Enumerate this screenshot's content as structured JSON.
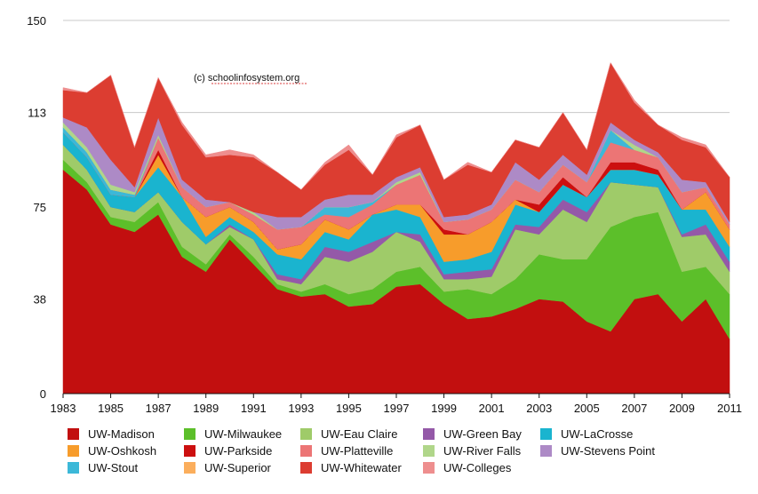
{
  "chart_data": {
    "type": "area",
    "stacked": true,
    "watermark": "(c) schoolinfosystem.org",
    "x": [
      1983,
      1984,
      1985,
      1986,
      1987,
      1988,
      1989,
      1990,
      1991,
      1992,
      1993,
      1994,
      1995,
      1996,
      1997,
      1998,
      1999,
      2000,
      2001,
      2002,
      2003,
      2004,
      2005,
      2006,
      2007,
      2008,
      2009,
      2010,
      2011
    ],
    "x_ticks": [
      "1983",
      "1985",
      "1987",
      "1989",
      "1991",
      "1993",
      "1995",
      "1997",
      "1999",
      "2001",
      "2003",
      "2005",
      "2007",
      "2009",
      "2011"
    ],
    "y_ticks": [
      "0",
      "38",
      "75",
      "113",
      "150"
    ],
    "ylim": [
      0,
      150
    ],
    "grid": true,
    "legend_position": "bottom",
    "series": [
      {
        "name": "UW-Madison",
        "color": "#c20f0f",
        "values": [
          90,
          82,
          68,
          65,
          72,
          55,
          49,
          62,
          52,
          42,
          39,
          40,
          35,
          36,
          43,
          44,
          36,
          30,
          31,
          34,
          38,
          37,
          29,
          25,
          38,
          40,
          29,
          38,
          22
        ]
      },
      {
        "name": "UW-Milwaukee",
        "color": "#5cbf2a",
        "values": [
          4,
          3,
          3,
          4,
          5,
          4,
          3,
          2,
          3,
          2,
          2,
          4,
          5,
          6,
          6,
          7,
          5,
          12,
          9,
          12,
          18,
          17,
          25,
          42,
          33,
          33,
          20,
          13,
          18
        ]
      },
      {
        "name": "UW-Eau Claire",
        "color": "#9fcb69",
        "values": [
          6,
          5,
          4,
          4,
          4,
          10,
          8,
          3,
          7,
          2,
          3,
          11,
          13,
          15,
          16,
          10,
          5,
          4,
          7,
          20,
          8,
          20,
          15,
          18,
          13,
          10,
          14,
          13,
          9
        ]
      },
      {
        "name": "UW-Green Bay",
        "color": "#9459a8",
        "values": [
          0,
          0,
          0,
          0,
          0,
          0,
          0,
          1,
          0,
          2,
          2,
          4,
          4,
          4,
          0,
          3,
          2,
          3,
          3,
          2,
          3,
          4,
          4,
          0,
          0,
          0,
          1,
          4,
          4
        ]
      },
      {
        "name": "UW-LaCrosse",
        "color": "#1ab4cf",
        "values": [
          5,
          5,
          5,
          6,
          10,
          10,
          3,
          3,
          3,
          8,
          8,
          6,
          5,
          11,
          9,
          7,
          5,
          5,
          7,
          8,
          6,
          6,
          6,
          5,
          6,
          5,
          10,
          6,
          6
        ]
      },
      {
        "name": "UW-Oshkosh",
        "color": "#f79c2b",
        "values": [
          0,
          0,
          0,
          0,
          5,
          0,
          8,
          4,
          4,
          2,
          6,
          5,
          4,
          0,
          2,
          5,
          11,
          10,
          12,
          2,
          0,
          0,
          0,
          0,
          0,
          0,
          0,
          7,
          7
        ]
      },
      {
        "name": "UW-Parkside",
        "color": "#cc0f0f",
        "values": [
          0,
          0,
          0,
          0,
          2,
          0,
          0,
          0,
          0,
          0,
          0,
          0,
          0,
          0,
          0,
          0,
          2,
          0,
          0,
          0,
          3,
          3,
          0,
          3,
          3,
          2,
          0,
          0,
          0
        ]
      },
      {
        "name": "UW-Platteville",
        "color": "#ec7575",
        "values": [
          0,
          0,
          0,
          0,
          5,
          4,
          4,
          2,
          3,
          8,
          7,
          2,
          5,
          4,
          8,
          12,
          3,
          6,
          5,
          8,
          5,
          5,
          6,
          8,
          5,
          5,
          7,
          2,
          2
        ]
      },
      {
        "name": "UW-Stout",
        "color": "#3cb8d8",
        "values": [
          2,
          2,
          2,
          1,
          0,
          0,
          0,
          0,
          0,
          0,
          0,
          3,
          4,
          1,
          0,
          0,
          0,
          0,
          0,
          0,
          0,
          0,
          0,
          5,
          0,
          0,
          0,
          0,
          0
        ]
      },
      {
        "name": "UW-Superior",
        "color": "#fbae5c",
        "values": [
          0,
          0,
          0,
          0,
          0,
          0,
          0,
          0,
          0,
          0,
          0,
          0,
          0,
          0,
          0,
          0,
          0,
          0,
          0,
          0,
          0,
          0,
          0,
          0,
          0,
          0,
          0,
          0,
          0
        ]
      },
      {
        "name": "UW-River Falls",
        "color": "#b0d68a",
        "values": [
          2,
          2,
          2,
          1,
          1,
          0,
          0,
          0,
          1,
          0,
          0,
          0,
          0,
          0,
          1,
          1,
          0,
          0,
          0,
          0,
          0,
          0,
          0,
          0,
          2,
          0,
          0,
          0,
          0
        ]
      },
      {
        "name": "UW-Stevens Point",
        "color": "#ad8ac6",
        "values": [
          2,
          8,
          10,
          2,
          7,
          3,
          3,
          0,
          0,
          5,
          4,
          3,
          5,
          3,
          2,
          2,
          2,
          2,
          2,
          7,
          5,
          4,
          3,
          3,
          2,
          2,
          5,
          2,
          1
        ]
      },
      {
        "name": "UW-Whitewater",
        "color": "#dc3d31",
        "values": [
          11,
          14,
          34,
          16,
          16,
          22,
          17,
          19,
          22,
          18,
          11,
          14,
          18,
          8,
          16,
          17,
          15,
          20,
          13,
          9,
          13,
          17,
          10,
          24,
          15,
          11,
          16,
          14,
          18
        ]
      },
      {
        "name": "UW-Colleges",
        "color": "#ee8e8e",
        "values": [
          1,
          0,
          0,
          0,
          0,
          1,
          1,
          2,
          1,
          0,
          0,
          1,
          2,
          0,
          1,
          0,
          0,
          1,
          0,
          0,
          0,
          0,
          0,
          0,
          1,
          0,
          1,
          1,
          0
        ]
      }
    ]
  }
}
